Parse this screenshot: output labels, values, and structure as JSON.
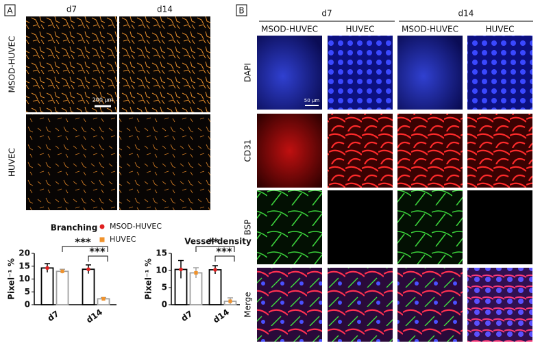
{
  "panel_a": {
    "label": "A",
    "columns": [
      "d7",
      "d14"
    ],
    "rows": [
      "MSOD-HUVEC",
      "HUVEC"
    ],
    "scale_bar": "200 µm"
  },
  "panel_b": {
    "label": "B",
    "groups": [
      "d7",
      "d14"
    ],
    "columns": [
      "MSOD-HUVEC",
      "HUVEC",
      "MSOD-HUVEC",
      "HUVEC"
    ],
    "rows": [
      "DAPI",
      "CD31",
      "BSP",
      "Merge"
    ],
    "scale_bar": "50 µm"
  },
  "chart_data": [
    {
      "type": "bar",
      "title": "Branching",
      "ylabel": "Pixel⁻¹ %",
      "categories": [
        "d7",
        "d14"
      ],
      "series": [
        {
          "name": "MSOD-HUVEC",
          "color": "#e02020",
          "edgecolor": "#000000",
          "values": [
            14.3,
            13.8
          ],
          "errors": [
            1.7,
            1.7
          ]
        },
        {
          "name": "HUVEC",
          "color": "#f0922b",
          "edgecolor": "#a0a0a0",
          "values": [
            13.0,
            2.3
          ],
          "errors": [
            0.8,
            0.5
          ]
        }
      ],
      "ylim": [
        0,
        20
      ],
      "yticks": [
        0,
        5,
        10,
        15,
        20
      ],
      "annotations": [
        "***",
        "***"
      ]
    },
    {
      "type": "bar",
      "title": "Vessel density",
      "ylabel": "Pixel⁻¹ %",
      "categories": [
        "d7",
        "d14"
      ],
      "series": [
        {
          "color": "#e02020",
          "edgecolor": "#000000",
          "values": [
            10.3,
            10.2
          ],
          "errors": [
            2.6,
            1.2
          ]
        },
        {
          "color": "#f0922b",
          "edgecolor": "#a0a0a0",
          "values": [
            9.3,
            1.0
          ],
          "errors": [
            1.5,
            1.0
          ]
        }
      ],
      "ylim": [
        0,
        15
      ],
      "yticks": [
        0,
        5,
        10,
        15
      ],
      "annotations": [
        "**",
        "***"
      ]
    }
  ]
}
